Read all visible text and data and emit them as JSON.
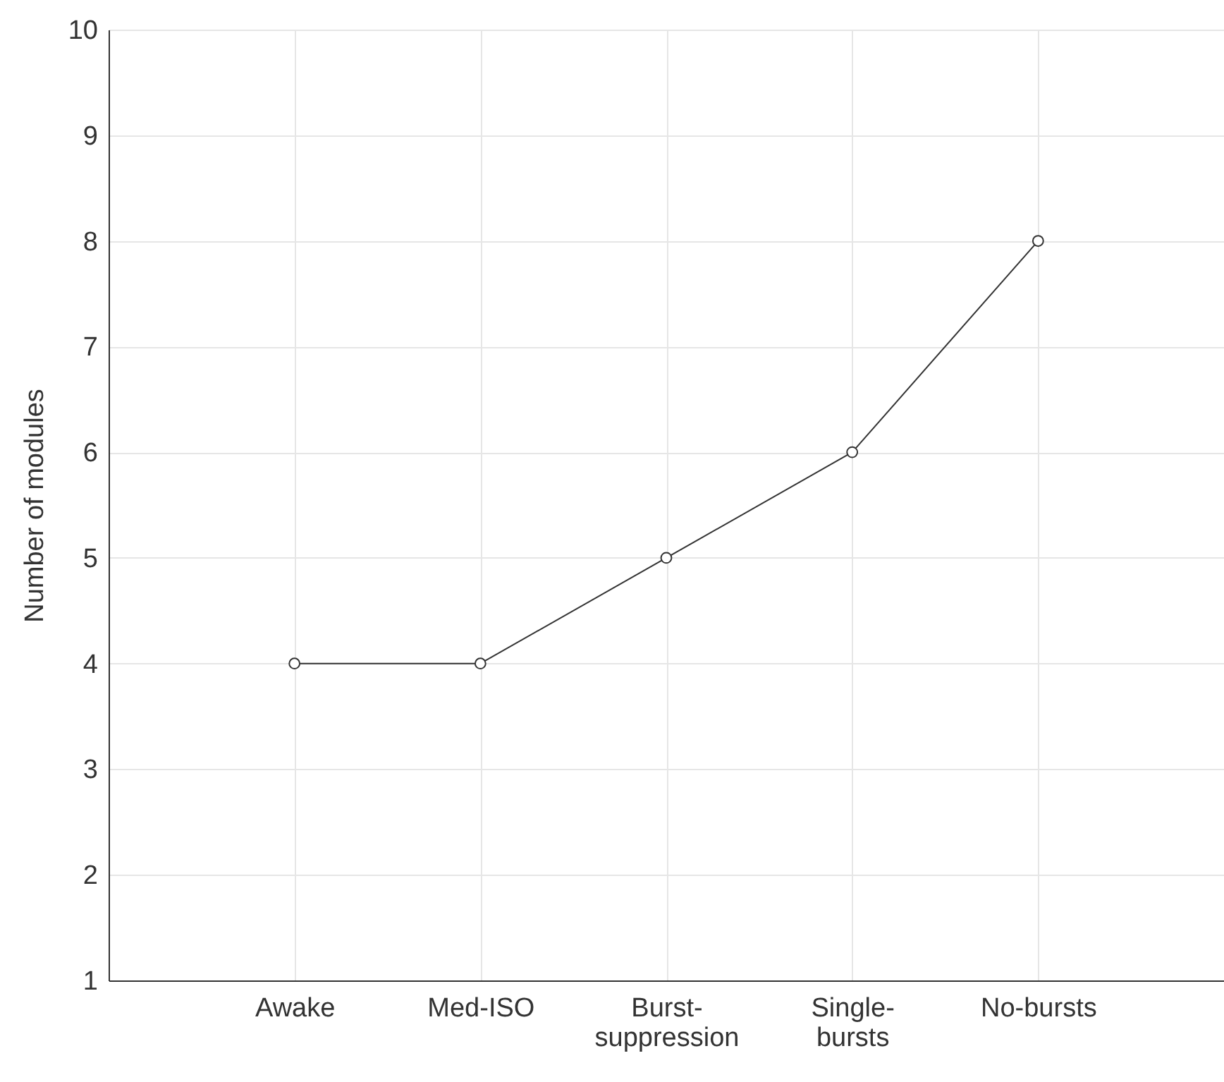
{
  "chart_data": {
    "type": "line",
    "ylabel": "Number of modules",
    "categories": [
      "Awake",
      "Med-ISO",
      "Burst-\nsuppression",
      "Single-\nbursts",
      "No-bursts"
    ],
    "series": [
      {
        "color": "#333333",
        "values": [
          4,
          4,
          5,
          6,
          8
        ]
      }
    ],
    "ylim": [
      1,
      10
    ],
    "yticks": [
      1,
      2,
      3,
      4,
      5,
      6,
      7,
      8,
      9,
      10
    ],
    "grid": true,
    "marker": "circle",
    "line_style": "solid"
  }
}
